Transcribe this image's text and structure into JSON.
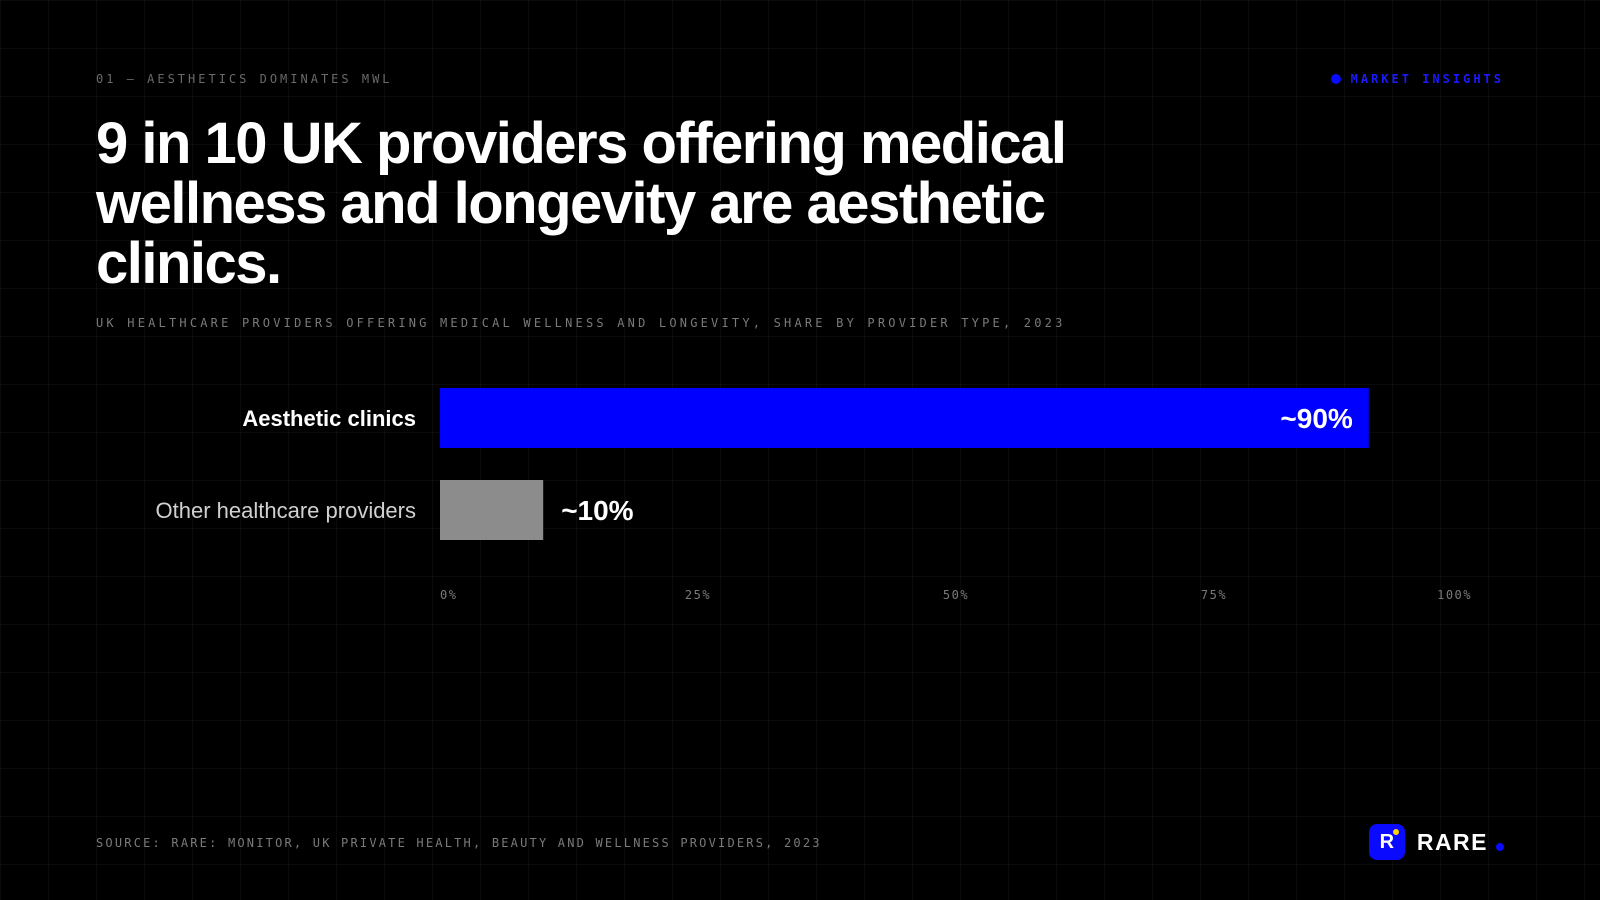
{
  "eyebrow": "01 — AESTHETICS DOMINATES MWL",
  "tag": {
    "label": "MARKET INSIGHTS",
    "color": "#0a0aff"
  },
  "headline": "9 in 10 UK providers offering medical wellness and longevity are aesthetic clinics.",
  "subtitle": "UK HEALTHCARE PROVIDERS OFFERING MEDICAL WELLNESS AND LONGEVITY, SHARE BY PROVIDER TYPE, 2023",
  "chart_data": {
    "type": "bar",
    "orientation": "horizontal",
    "categories": [
      "Aesthetic clinics",
      "Other healthcare providers"
    ],
    "values": [
      90,
      10
    ],
    "value_labels": [
      "~90%",
      "~10%"
    ],
    "colors": [
      "#0000ff",
      "#8c8c8c"
    ],
    "xlim": [
      0,
      100
    ],
    "xticks": [
      0,
      25,
      50,
      75,
      100
    ],
    "xtick_labels": [
      "0%",
      "25%",
      "50%",
      "75%",
      "100%"
    ]
  },
  "source": "SOURCE: RARE: MONITOR, UK PRIVATE HEALTH, BEAUTY AND WELLNESS PROVIDERS, 2023",
  "brand": {
    "logo_letter": "R",
    "name": "RARE",
    "logo_icon": "rare-logo-icon"
  }
}
